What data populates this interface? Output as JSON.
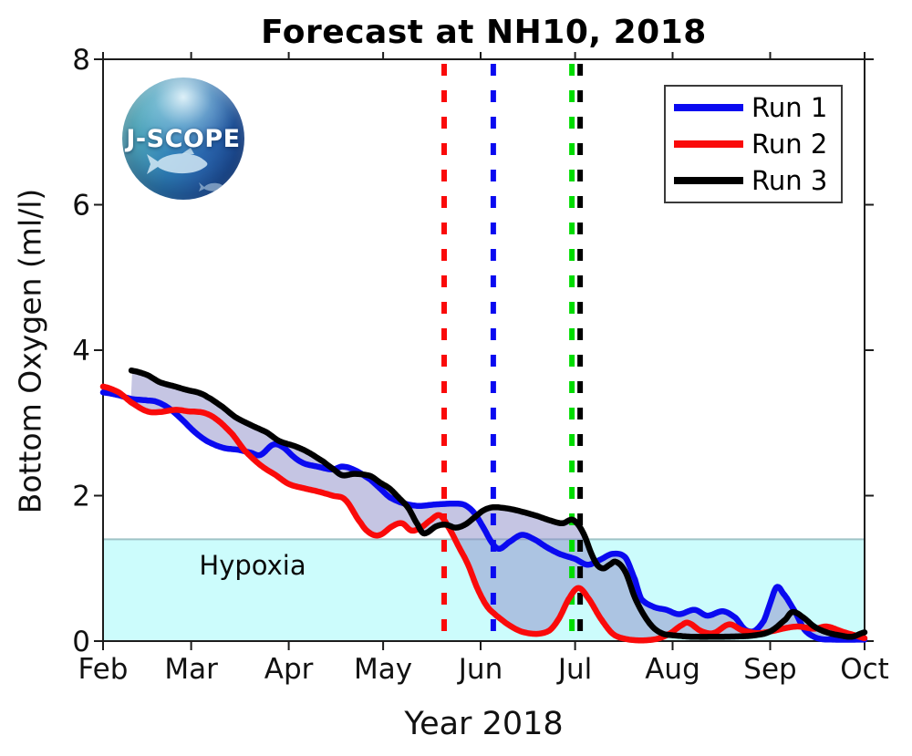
{
  "logo": {
    "text": "J-SCOPE"
  },
  "chart_data": {
    "type": "line",
    "title": "Forecast at NH10, 2018",
    "xlabel": "Year 2018",
    "ylabel": "Bottom Oxygen (ml/l)",
    "x_axis": {
      "unit": "days since Feb 1, 2018",
      "range": [
        0,
        242
      ],
      "ticks": [
        {
          "label": "Feb",
          "day": 0
        },
        {
          "label": "Mar",
          "day": 28
        },
        {
          "label": "Apr",
          "day": 59
        },
        {
          "label": "May",
          "day": 89
        },
        {
          "label": "Jun",
          "day": 120
        },
        {
          "label": "Jul",
          "day": 150
        },
        {
          "label": "Aug",
          "day": 181
        },
        {
          "label": "Sep",
          "day": 212
        },
        {
          "label": "Oct",
          "day": 242
        }
      ]
    },
    "y_axis": {
      "range": [
        0,
        8
      ],
      "ticks": [
        0,
        2,
        4,
        6,
        8
      ]
    },
    "grid": false,
    "legend": {
      "position": "top-right",
      "entries": [
        {
          "label": "Run 1",
          "color": "#0a0af0"
        },
        {
          "label": "Run 2",
          "color": "#fa0a0a"
        },
        {
          "label": "Run 3",
          "color": "#000000"
        }
      ]
    },
    "hypoxia_region": {
      "label": "Hypoxia",
      "threshold_ml_l": 1.4,
      "band_color": "#ccfcfc",
      "edge_color": "#9fc3c6"
    },
    "ensemble_envelope": {
      "fill_color": "rgba(140,140,200,0.5)",
      "description": "shaded min-max range across the three runs"
    },
    "event_lines": [
      {
        "color": "#fa0a0a",
        "style": "dashed",
        "day": 108.4
      },
      {
        "color": "#0a0af0",
        "style": "dashed",
        "day": 124.0
      },
      {
        "color": "#00dd00",
        "style": "dashed",
        "day": 149.0
      },
      {
        "color": "#000000",
        "style": "dashed",
        "day": 151.6
      }
    ],
    "series": [
      {
        "name": "Run 1",
        "color": "#0a0af0",
        "points": [
          [
            0,
            3.42
          ],
          [
            5,
            3.38
          ],
          [
            9,
            3.33
          ],
          [
            14,
            3.31
          ],
          [
            17,
            3.29
          ],
          [
            21,
            3.2
          ],
          [
            25,
            3.05
          ],
          [
            29,
            2.88
          ],
          [
            33,
            2.75
          ],
          [
            38,
            2.66
          ],
          [
            43,
            2.63
          ],
          [
            47,
            2.59
          ],
          [
            50,
            2.56
          ],
          [
            54,
            2.7
          ],
          [
            57,
            2.67
          ],
          [
            61,
            2.52
          ],
          [
            64,
            2.44
          ],
          [
            68,
            2.4
          ],
          [
            73,
            2.36
          ],
          [
            76,
            2.4
          ],
          [
            80,
            2.35
          ],
          [
            85,
            2.22
          ],
          [
            88,
            2.1
          ],
          [
            91,
            1.98
          ],
          [
            95,
            1.9
          ],
          [
            100,
            1.86
          ],
          [
            106,
            1.88
          ],
          [
            112,
            1.89
          ],
          [
            115,
            1.87
          ],
          [
            118,
            1.76
          ],
          [
            121,
            1.55
          ],
          [
            124,
            1.33
          ],
          [
            126,
            1.27
          ],
          [
            129,
            1.36
          ],
          [
            133,
            1.46
          ],
          [
            137,
            1.4
          ],
          [
            141,
            1.29
          ],
          [
            145,
            1.2
          ],
          [
            150,
            1.13
          ],
          [
            154,
            1.05
          ],
          [
            158,
            1.12
          ],
          [
            162,
            1.2
          ],
          [
            166,
            1.15
          ],
          [
            169,
            0.85
          ],
          [
            171,
            0.58
          ],
          [
            175,
            0.47
          ],
          [
            179,
            0.43
          ],
          [
            183,
            0.37
          ],
          [
            188,
            0.43
          ],
          [
            192,
            0.35
          ],
          [
            197,
            0.41
          ],
          [
            201,
            0.32
          ],
          [
            204,
            0.16
          ],
          [
            207,
            0.14
          ],
          [
            210,
            0.28
          ],
          [
            212,
            0.52
          ],
          [
            214,
            0.74
          ],
          [
            216,
            0.66
          ],
          [
            220,
            0.4
          ],
          [
            223,
            0.15
          ],
          [
            227,
            0.04
          ],
          [
            232,
            0.02
          ],
          [
            242,
            0.02
          ]
        ]
      },
      {
        "name": "Run 2",
        "color": "#fa0a0a",
        "points": [
          [
            0,
            3.5
          ],
          [
            5,
            3.42
          ],
          [
            9,
            3.28
          ],
          [
            14,
            3.16
          ],
          [
            18,
            3.15
          ],
          [
            23,
            3.18
          ],
          [
            27,
            3.16
          ],
          [
            32,
            3.14
          ],
          [
            36,
            3.05
          ],
          [
            41,
            2.85
          ],
          [
            45,
            2.62
          ],
          [
            50,
            2.42
          ],
          [
            55,
            2.28
          ],
          [
            59,
            2.16
          ],
          [
            64,
            2.1
          ],
          [
            68,
            2.06
          ],
          [
            73,
            2.0
          ],
          [
            77,
            1.94
          ],
          [
            82,
            1.62
          ],
          [
            85,
            1.48
          ],
          [
            88,
            1.46
          ],
          [
            92,
            1.58
          ],
          [
            95,
            1.62
          ],
          [
            98,
            1.52
          ],
          [
            101,
            1.56
          ],
          [
            104,
            1.66
          ],
          [
            107,
            1.73
          ],
          [
            110,
            1.55
          ],
          [
            113,
            1.3
          ],
          [
            116,
            1.05
          ],
          [
            119,
            0.72
          ],
          [
            122,
            0.48
          ],
          [
            125,
            0.35
          ],
          [
            129,
            0.22
          ],
          [
            133,
            0.13
          ],
          [
            138,
            0.1
          ],
          [
            142,
            0.15
          ],
          [
            145,
            0.32
          ],
          [
            148,
            0.58
          ],
          [
            151,
            0.73
          ],
          [
            154,
            0.6
          ],
          [
            158,
            0.32
          ],
          [
            162,
            0.1
          ],
          [
            166,
            0.03
          ],
          [
            171,
            0.01
          ],
          [
            176,
            0.03
          ],
          [
            180,
            0.1
          ],
          [
            184,
            0.22
          ],
          [
            186,
            0.25
          ],
          [
            190,
            0.14
          ],
          [
            194,
            0.11
          ],
          [
            199,
            0.23
          ],
          [
            203,
            0.15
          ],
          [
            208,
            0.11
          ],
          [
            213,
            0.14
          ],
          [
            217,
            0.18
          ],
          [
            221,
            0.2
          ],
          [
            226,
            0.17
          ],
          [
            230,
            0.2
          ],
          [
            235,
            0.13
          ],
          [
            239,
            0.08
          ],
          [
            242,
            0.04
          ]
        ]
      },
      {
        "name": "Run 3",
        "color": "#000000",
        "points": [
          [
            9,
            3.72
          ],
          [
            14,
            3.66
          ],
          [
            18,
            3.56
          ],
          [
            23,
            3.5
          ],
          [
            27,
            3.45
          ],
          [
            30,
            3.42
          ],
          [
            33,
            3.36
          ],
          [
            38,
            3.22
          ],
          [
            42,
            3.08
          ],
          [
            47,
            2.97
          ],
          [
            52,
            2.87
          ],
          [
            56,
            2.75
          ],
          [
            61,
            2.68
          ],
          [
            65,
            2.6
          ],
          [
            70,
            2.47
          ],
          [
            73,
            2.37
          ],
          [
            76,
            2.28
          ],
          [
            80,
            2.3
          ],
          [
            85,
            2.27
          ],
          [
            88,
            2.18
          ],
          [
            91,
            2.1
          ],
          [
            94,
            1.97
          ],
          [
            97,
            1.83
          ],
          [
            100,
            1.6
          ],
          [
            102,
            1.48
          ],
          [
            106,
            1.58
          ],
          [
            109,
            1.6
          ],
          [
            112,
            1.56
          ],
          [
            115,
            1.6
          ],
          [
            118,
            1.7
          ],
          [
            121,
            1.8
          ],
          [
            124,
            1.84
          ],
          [
            129,
            1.82
          ],
          [
            133,
            1.78
          ],
          [
            138,
            1.72
          ],
          [
            142,
            1.66
          ],
          [
            146,
            1.62
          ],
          [
            149,
            1.67
          ],
          [
            151,
            1.6
          ],
          [
            153,
            1.45
          ],
          [
            155,
            1.22
          ],
          [
            157,
            1.05
          ],
          [
            159,
            1.0
          ],
          [
            161,
            1.05
          ],
          [
            163,
            1.09
          ],
          [
            166,
            0.95
          ],
          [
            169,
            0.6
          ],
          [
            172,
            0.35
          ],
          [
            175,
            0.18
          ],
          [
            178,
            0.1
          ],
          [
            181,
            0.08
          ],
          [
            187,
            0.06
          ],
          [
            196,
            0.06
          ],
          [
            205,
            0.07
          ],
          [
            210,
            0.1
          ],
          [
            213,
            0.16
          ],
          [
            217,
            0.3
          ],
          [
            219,
            0.4
          ],
          [
            222,
            0.34
          ],
          [
            226,
            0.2
          ],
          [
            230,
            0.12
          ],
          [
            234,
            0.08
          ],
          [
            238,
            0.06
          ],
          [
            242,
            0.12
          ]
        ]
      }
    ]
  }
}
